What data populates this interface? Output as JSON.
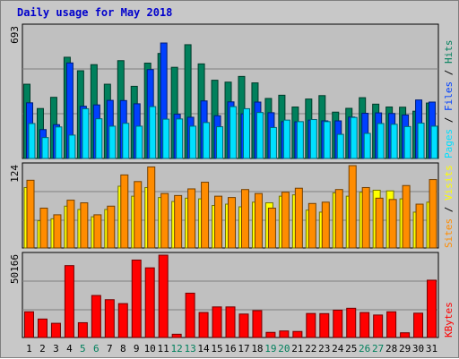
{
  "chart_data": {
    "type": "bar",
    "title": "Daily usage for May 2018",
    "days": [
      "1",
      "2",
      "3",
      "4",
      "5",
      "6",
      "7",
      "8",
      "9",
      "10",
      "11",
      "12",
      "13",
      "14",
      "15",
      "16",
      "17",
      "18",
      "19",
      "20",
      "21",
      "22",
      "23",
      "24",
      "25",
      "26",
      "27",
      "28",
      "29",
      "30",
      "31"
    ],
    "weekend_days": [
      "5",
      "6",
      "12",
      "13",
      "19",
      "20",
      "26",
      "27"
    ],
    "panels": [
      {
        "id": "hits-files-pages",
        "ymax_label": "693",
        "ymax": 693,
        "legend": [
          "Pages",
          "Files",
          "Hits"
        ],
        "series": [
          {
            "name": "Hits",
            "color": "#00805c",
            "values": [
              391,
              263,
              322,
              533,
              462,
              494,
              391,
              515,
              380,
              502,
              553,
              480,
              599,
              498,
              412,
              402,
              432,
              398,
              316,
              333,
              271,
              313,
              331,
              244,
              264,
              320,
              286,
              271,
              270,
              249,
              292
            ]
          },
          {
            "name": "Files",
            "color": "#0040ff",
            "values": [
              293,
              152,
              178,
              503,
              275,
              282,
              306,
              305,
              288,
              468,
              608,
              233,
              217,
              303,
              225,
              298,
              235,
              297,
              241,
              194,
              193,
              202,
              198,
              198,
              218,
              238,
              240,
              237,
              229,
              308,
              297
            ]
          },
          {
            "name": "Pages",
            "color": "#00e0ff",
            "values": [
              184,
              110,
              166,
              123,
              262,
              209,
              170,
              185,
              170,
              273,
              207,
              208,
              170,
              189,
              167,
              273,
              262,
              242,
              163,
              202,
              194,
              205,
              194,
              127,
              216,
              132,
              184,
              180,
              168,
              186,
              170
            ]
          }
        ]
      },
      {
        "id": "visits-sites",
        "ymax_label": "124",
        "ymax": 124,
        "legend": [
          "Sites",
          "Visits"
        ],
        "series": [
          {
            "name": "Visits",
            "color": "#ffff00",
            "values": [
              91,
              41,
              44,
              63,
              58,
              47,
              58,
              93,
              78,
              91,
              76,
              70,
              75,
              74,
              64,
              66,
              62,
              69,
              68,
              78,
              80,
              57,
              54,
              83,
              78,
              84,
              87,
              86,
              74,
              54,
              69
            ]
          },
          {
            "name": "Sites",
            "color": "#ff8c00",
            "values": [
              102,
              60,
              50,
              72,
              68,
              50,
              63,
              110,
              100,
              122,
              82,
              79,
              89,
              99,
              78,
              76,
              88,
              82,
              60,
              84,
              90,
              67,
              69,
              88,
              124,
              91,
              75,
              73,
              94,
              66,
              103
            ]
          }
        ]
      },
      {
        "id": "kbytes",
        "ymax_label": "50166",
        "ymax": 50166,
        "legend": [
          "KBytes"
        ],
        "series": [
          {
            "name": "KBytes",
            "color": "#ff0000",
            "values": [
              15680,
              11260,
              8670,
              43800,
              9030,
              25600,
              23040,
              20660,
              47180,
              42440,
              50166,
              2000,
              27010,
              15240,
              18640,
              18640,
              14300,
              16380,
              3140,
              4000,
              3690,
              14640,
              14560,
              16660,
              17820,
              15230,
              13700,
              15670,
              2890,
              14830,
              34920
            ]
          }
        ]
      }
    ]
  }
}
